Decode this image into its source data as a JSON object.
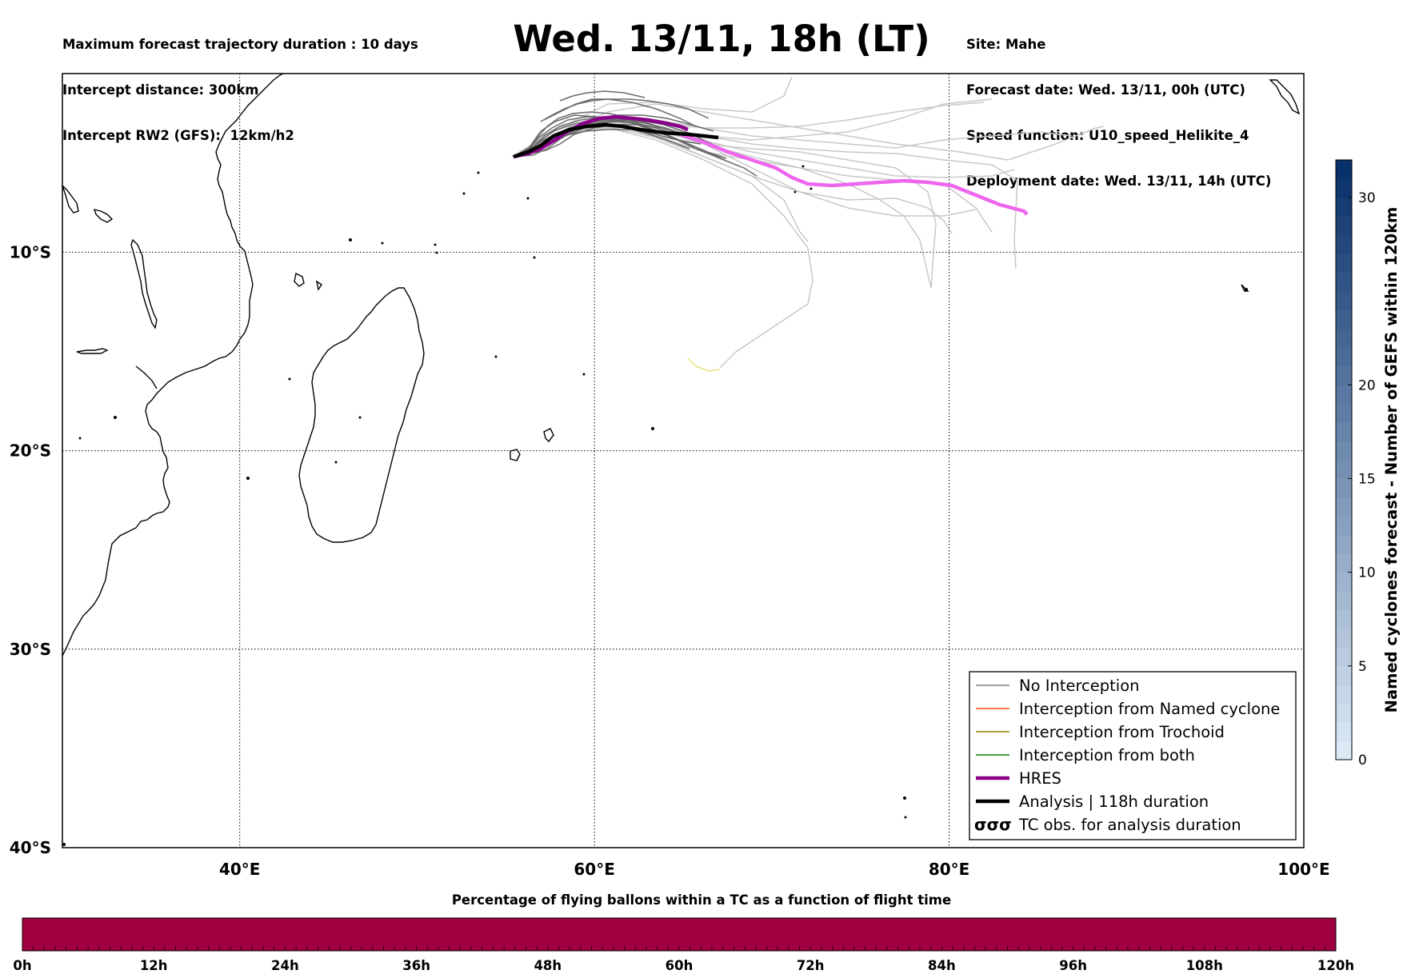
{
  "header": {
    "left_lines": [
      "Maximum forecast trajectory duration : 10 days",
      "Intercept distance: 300km",
      "Intercept RW2 (GFS):  12km/h2"
    ],
    "title": "Wed. 13/11, 18h (LT)",
    "right_lines": [
      "Site: Mahe",
      "Forecast date: Wed. 13/11, 00h (UTC)",
      "Speed function: U10_speed_Helikite_4",
      "Deployment date: Wed. 13/11, 14h (UTC)"
    ]
  },
  "map": {
    "lon_range": [
      30,
      100
    ],
    "lat_range": [
      -1,
      -40
    ],
    "lat_labels": [
      "10°S",
      "20°S",
      "30°S",
      "40°S"
    ],
    "lon_labels": [
      "40°E",
      "60°E",
      "80°E",
      "100°E"
    ],
    "lat_ticks": [
      -10,
      -20,
      -30,
      -40
    ],
    "lon_ticks": [
      40,
      60,
      80,
      100
    ],
    "grid": "dotted"
  },
  "legend": {
    "placement": "lower-right",
    "entries": [
      {
        "label": "No Interception",
        "color": "#808080",
        "style": "thin"
      },
      {
        "label": "Interception from Named cyclone",
        "color": "#ff4500",
        "style": "thin"
      },
      {
        "label": "Interception from Trochoid",
        "color": "#808000",
        "style": "thin"
      },
      {
        "label": "Interception from both",
        "color": "#008000",
        "style": "thin"
      },
      {
        "label": "HRES",
        "color": "#8b008b",
        "style": "thick"
      },
      {
        "label": "Analysis | 118h duration",
        "color": "#000000",
        "style": "thick"
      },
      {
        "label": "TC obs. for analysis duration",
        "color": "#000000",
        "style": "symbol",
        "symbol": "σσσ"
      }
    ]
  },
  "colorbar_right": {
    "label": "Named cyclones forecast - Number of GEFS within 120km",
    "ticks": [
      "0",
      "5",
      "10",
      "15",
      "20",
      "30"
    ],
    "tick_values": [
      0,
      5,
      10,
      15,
      20,
      30
    ],
    "range": [
      0,
      32
    ],
    "color_low": "#dbe9f6",
    "color_high": "#08306b"
  },
  "bottom_bar": {
    "title": "Percentage of flying ballons within a TC as a function of flight time",
    "ticks": [
      "0h",
      "12h",
      "24h",
      "36h",
      "48h",
      "60h",
      "72h",
      "84h",
      "96h",
      "108h",
      "120h"
    ],
    "fill_color": "#a00040"
  },
  "colors": {
    "hres": "#8b008b",
    "hres_later": "#ee66ee",
    "analysis": "#000000",
    "ensemble_dark": "#6a6a6a",
    "ensemble_light": "#c8c8c8",
    "yellow_track": "#e8e07a"
  }
}
